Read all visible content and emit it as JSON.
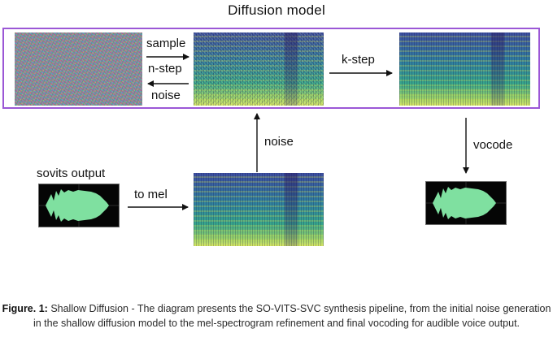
{
  "diagram": {
    "box_title": "Diffusion model",
    "labels": {
      "sample": "sample",
      "n_step": "n-step",
      "noise_back": "noise",
      "k_step": "k-step",
      "noise_up": "noise",
      "vocode": "vocode",
      "sovits_output": "sovits output",
      "to_mel": "to mel"
    },
    "colors": {
      "box_border": "#9b57d6",
      "waveform": "#7fe0a0",
      "arrow": "#111111"
    }
  },
  "caption": {
    "prefix": "Figure. 1:",
    "text": "Shallow Diffusion - The diagram presents the SO-VITS-SVC synthesis pipeline, from the initial noise generation in the shallow diffusion model to the mel-spectrogram refinement and final vocoding for audible voice output."
  }
}
